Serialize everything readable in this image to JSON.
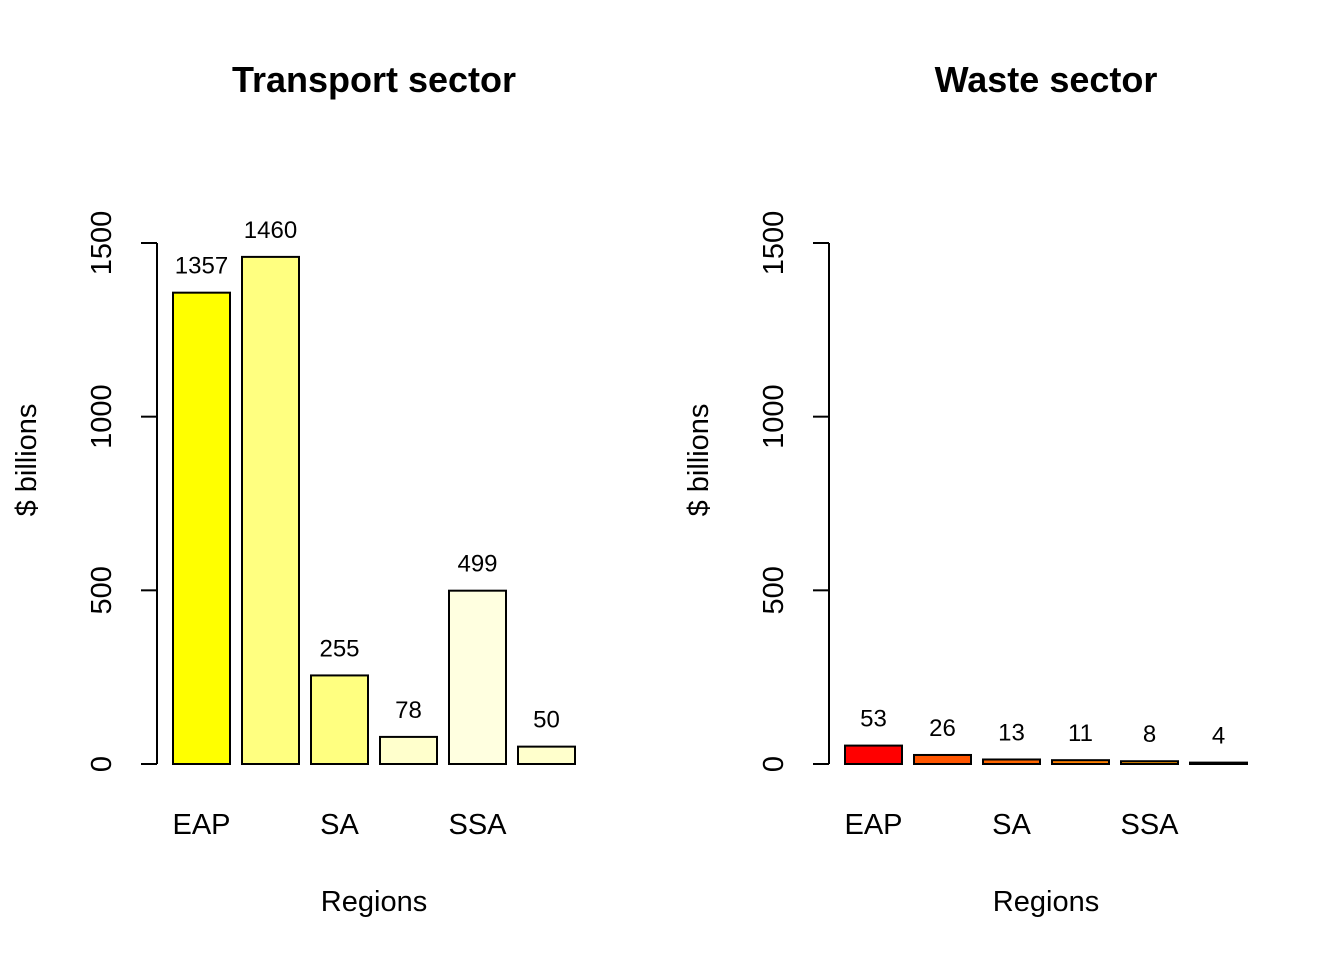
{
  "chart_data": [
    {
      "type": "bar",
      "title": "Transport sector",
      "xlabel": "Regions",
      "ylabel": "$ billions",
      "ylim": [
        0,
        1500
      ],
      "yticks": [
        0,
        500,
        1000,
        1500
      ],
      "values": [
        1357,
        1460,
        255,
        78,
        499,
        50
      ],
      "value_labels": [
        "1357",
        "1460",
        "255",
        "78",
        "499",
        "50"
      ],
      "category_labels": [
        "EAP",
        "",
        "SA",
        "",
        "SSA",
        ""
      ],
      "colors": [
        "#FFFF00",
        "#FFFF80",
        "#FFFF80",
        "#FFFFCC",
        "#FFFFE0",
        "#FFFFCC"
      ]
    },
    {
      "type": "bar",
      "title": "Waste sector",
      "xlabel": "Regions",
      "ylabel": "$ billions",
      "ylim": [
        0,
        1500
      ],
      "yticks": [
        0,
        500,
        1000,
        1500
      ],
      "values": [
        53,
        26,
        13,
        11,
        8,
        4
      ],
      "value_labels": [
        "53",
        "26",
        "13",
        "11",
        "8",
        "4"
      ],
      "category_labels": [
        "EAP",
        "",
        "SA",
        "",
        "SSA",
        ""
      ],
      "colors": [
        "#FF0000",
        "#FF5500",
        "#FF6600",
        "#FF8000",
        "#FF9900",
        "#333333"
      ]
    }
  ]
}
